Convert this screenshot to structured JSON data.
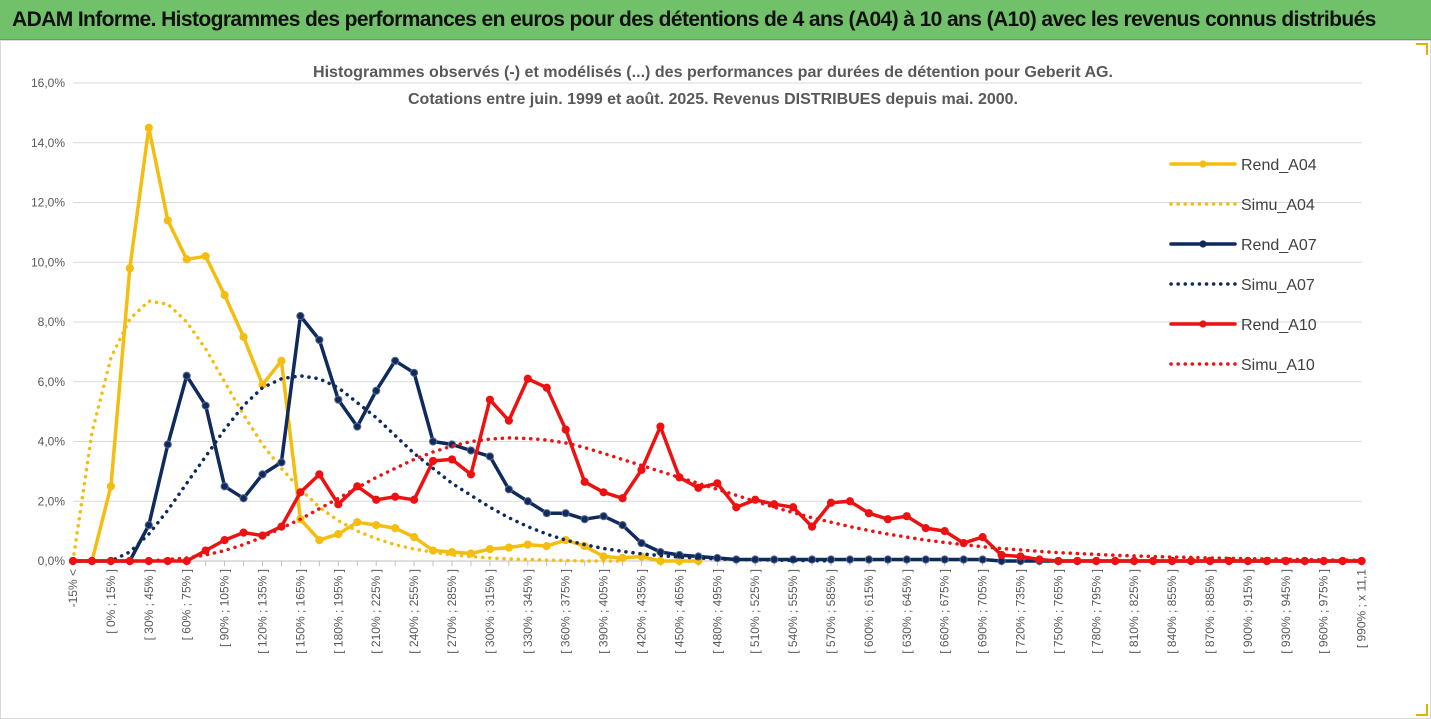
{
  "header": {
    "title": "ADAM Informe. Histogrammes des performances en euros pour des détentions de 4 ans (A04) à 10 ans (A10) avec les revenus connus distribués"
  },
  "chart_data": {
    "type": "line",
    "title": "Histogrammes observés (-) et modélisés (...) des performances par durées de détention pour Geberit AG.",
    "subtitle": "Cotations entre juin. 1999 et août. 2025. Revenus DISTRIBUES depuis mai. 2000.",
    "xlabel": "",
    "ylabel": "",
    "ylim": [
      0,
      16
    ],
    "y_ticks": [
      "0,0%",
      "2,0%",
      "4,0%",
      "6,0%",
      "8,0%",
      "10,0%",
      "12,0%",
      "14,0%",
      "16,0%"
    ],
    "x_tick_labels": [
      "-15% <",
      "[ 0% ; 15% ]",
      "[ 30% ; 45% ]",
      "[ 60% ; 75% ]",
      "[ 90% ; 105% ]",
      "[ 120% ; 135% ]",
      "[ 150% ; 165% ]",
      "[ 180% ; 195% ]",
      "[ 210% ; 225% ]",
      "[ 240% ; 255% ]",
      "[ 270% ; 285% ]",
      "[ 300% ; 315% ]",
      "[ 330% ; 345% ]",
      "[ 360% ; 375% ]",
      "[ 390% ; 405% ]",
      "[ 420% ; 435% ]",
      "[ 450% ; 465% ]",
      "[ 480% ; 495% ]",
      "[ 510% ; 525% ]",
      "[ 540% ; 555% ]",
      "[ 570% ; 585% ]",
      "[ 600% ; 615% ]",
      "[ 630% ; 645% ]",
      "[ 660% ; 675% ]",
      "[ 690% ; 705% ]",
      "[ 720% ; 735% ]",
      "[ 750% ; 765% ]",
      "[ 780% ; 795% ]",
      "[ 810% ; 825% ]",
      "[ 840% ; 855% ]",
      "[ 870% ; 885% ]",
      "[ 900% ; 915% ]",
      "[ 930% ; 945% ]",
      "[ 960% ; 975% ]",
      "[ 990% ; x 11,1"
    ],
    "category_count": 69,
    "legend_position": "right",
    "grid": {
      "horizontal": true,
      "vertical": false
    },
    "colors": {
      "A04": "#f5bd0f",
      "A07": "#0f2a5e",
      "A10": "#ee1111",
      "grid": "#d9d9d9",
      "axis": "#bfbfbf"
    },
    "series": [
      {
        "name": "Rend_A04",
        "color": "#f5bd0f",
        "style": "solid",
        "marker": true,
        "values": [
          0,
          0,
          2.5,
          9.8,
          14.5,
          11.4,
          10.1,
          10.2,
          8.9,
          7.5,
          5.9,
          6.7,
          1.4,
          0.7,
          0.9,
          1.3,
          1.2,
          1.1,
          0.8,
          0.35,
          0.3,
          0.25,
          0.4,
          0.45,
          0.55,
          0.5,
          0.7,
          0.5,
          0.15,
          0.1,
          0.15,
          0,
          0,
          0
        ]
      },
      {
        "name": "Simu_A04",
        "color": "#f5bd0f",
        "style": "dotted",
        "marker": false,
        "values": [
          0,
          4.3,
          6.8,
          8.1,
          8.7,
          8.6,
          8.0,
          7.1,
          6.0,
          4.9,
          3.9,
          3.1,
          2.4,
          1.8,
          1.35,
          1.0,
          0.75,
          0.55,
          0.4,
          0.3,
          0.2,
          0.15,
          0.1,
          0.07,
          0.05,
          0.03,
          0.02,
          0,
          0,
          0
        ]
      },
      {
        "name": "Rend_A07",
        "color": "#0f2a5e",
        "style": "solid",
        "marker": true,
        "values": [
          0,
          0,
          0,
          0,
          1.2,
          3.9,
          6.2,
          5.2,
          2.5,
          2.1,
          2.9,
          3.3,
          8.2,
          7.4,
          5.4,
          4.5,
          5.7,
          6.7,
          6.3,
          4.0,
          3.9,
          3.7,
          3.5,
          2.4,
          2.0,
          1.6,
          1.6,
          1.4,
          1.5,
          1.2,
          0.6,
          0.3,
          0.2,
          0.15,
          0.1,
          0.05,
          0.05,
          0.05,
          0.05,
          0.05,
          0.05,
          0.05,
          0.05,
          0.05,
          0.05,
          0.05,
          0.05,
          0.05,
          0.05,
          0,
          0,
          0,
          0,
          0,
          0,
          0,
          0,
          0,
          0,
          0,
          0,
          0,
          0,
          0,
          0,
          0,
          0,
          0,
          0
        ]
      },
      {
        "name": "Simu_A07",
        "color": "#0f2a5e",
        "style": "dotted",
        "marker": false,
        "values": [
          0,
          0,
          0,
          0.3,
          0.9,
          1.7,
          2.6,
          3.5,
          4.4,
          5.2,
          5.8,
          6.1,
          6.2,
          6.1,
          5.8,
          5.3,
          4.8,
          4.2,
          3.6,
          3.1,
          2.6,
          2.2,
          1.8,
          1.45,
          1.15,
          0.9,
          0.7,
          0.55,
          0.42,
          0.32,
          0.24,
          0.18,
          0.13,
          0.1,
          0.07,
          0.05,
          0.04,
          0.03,
          0.02,
          0.01,
          0
        ]
      },
      {
        "name": "Rend_A10",
        "color": "#ee1111",
        "style": "solid",
        "marker": true,
        "values": [
          0,
          0,
          0,
          0,
          0,
          0,
          0,
          0.35,
          0.7,
          0.95,
          0.85,
          1.15,
          2.3,
          2.9,
          1.9,
          2.5,
          2.05,
          2.15,
          2.05,
          3.35,
          3.4,
          2.9,
          5.4,
          4.7,
          6.1,
          5.8,
          4.4,
          2.65,
          2.3,
          2.1,
          3.05,
          4.5,
          2.8,
          2.45,
          2.6,
          1.8,
          2.05,
          1.9,
          1.8,
          1.15,
          1.95,
          2.0,
          1.6,
          1.4,
          1.5,
          1.1,
          1.0,
          0.6,
          0.8,
          0.2,
          0.15,
          0.05,
          0,
          0,
          0,
          0,
          0,
          0,
          0,
          0,
          0,
          0,
          0,
          0,
          0,
          0,
          0,
          0,
          0
        ]
      },
      {
        "name": "Simu_A10",
        "color": "#ee1111",
        "style": "dotted",
        "marker": false,
        "values": [
          0,
          0,
          0,
          0,
          0,
          0.05,
          0.1,
          0.2,
          0.35,
          0.55,
          0.8,
          1.1,
          1.4,
          1.75,
          2.1,
          2.45,
          2.8,
          3.1,
          3.4,
          3.65,
          3.85,
          4.0,
          4.08,
          4.12,
          4.1,
          4.05,
          3.95,
          3.8,
          3.6,
          3.4,
          3.2,
          3.0,
          2.8,
          2.6,
          2.4,
          2.2,
          2.0,
          1.8,
          1.62,
          1.45,
          1.3,
          1.15,
          1.02,
          0.9,
          0.8,
          0.7,
          0.62,
          0.55,
          0.48,
          0.42,
          0.37,
          0.32,
          0.28,
          0.25,
          0.22,
          0.19,
          0.17,
          0.15,
          0.13,
          0.12,
          0.1,
          0.09,
          0.08,
          0.07,
          0.06,
          0.05,
          0.04,
          0.03,
          0.02
        ]
      }
    ]
  }
}
